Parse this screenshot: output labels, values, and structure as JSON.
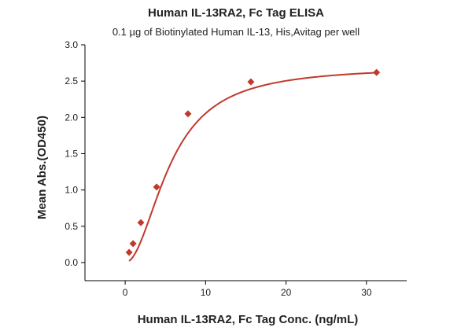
{
  "chart_data": {
    "type": "scatter",
    "title": "Human IL-13RA2, Fc Tag ELISA",
    "subtitle": "0.1 µg of Biotinylated Human IL-13, His,Avitag per well",
    "xlabel": "Human IL-13RA2, Fc Tag Conc. (ng/mL)",
    "ylabel": "Mean Abs.(OD450)",
    "xlim": [
      -5,
      35
    ],
    "ylim": [
      -0.25,
      3.0
    ],
    "xticks": [
      0,
      10,
      20,
      30
    ],
    "yticks": [
      0.0,
      0.5,
      1.0,
      1.5,
      2.0,
      2.5,
      3.0
    ],
    "ytick_labels": [
      "0.0",
      "0.5",
      "1.0",
      "1.5",
      "2.0",
      "2.5",
      "3.0"
    ],
    "grid": false,
    "series": [
      {
        "marker": "diamond",
        "color": "#c0392b",
        "x": [
          0.49,
          0.98,
          1.95,
          3.91,
          7.81,
          15.63,
          31.25
        ],
        "y": [
          0.14,
          0.26,
          0.55,
          1.04,
          2.05,
          2.49,
          2.62
        ]
      }
    ],
    "fit_curve": {
      "color": "#c0392b",
      "model": "4PL",
      "bottom": 0.0,
      "top": 2.7,
      "ec50": 5.6,
      "hill": 2.0
    }
  }
}
